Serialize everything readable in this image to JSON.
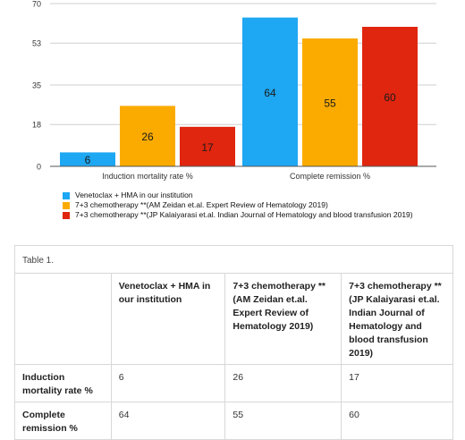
{
  "chart_data": {
    "type": "bar",
    "categories": [
      "Induction mortality rate  %",
      "Complete remission %"
    ],
    "series": [
      {
        "name": "Venetoclax + HMA in our institution",
        "values": [
          6,
          64
        ],
        "color": "#1ea7f2"
      },
      {
        "name": "7+3 chemotherapy **(AM Zeidan et.al. Expert Review of Hematology 2019)",
        "values": [
          26,
          55
        ],
        "color": "#fbab00"
      },
      {
        "name": "7+3 chemotherapy **(JP Kalaiyarasi et.al. Indian Journal of Hematology and blood transfusion 2019)",
        "values": [
          17,
          60
        ],
        "color": "#e0260f"
      }
    ],
    "yticks": [
      0,
      18,
      35,
      53,
      70
    ],
    "ylim": [
      0,
      70
    ],
    "grid": true,
    "legend": "bottom-left",
    "title": "",
    "xlabel": "",
    "ylabel": ""
  },
  "table": {
    "caption": "Table 1.",
    "headers": [
      "",
      "Venetoclax + HMA in our institution",
      "7+3 chemotherapy ** (AM Zeidan et.al. Expert Review of Hematology 2019)",
      "7+3 chemotherapy ** (JP Kalaiyarasi et.al. Indian Journal of Hematology and blood transfusion 2019)"
    ],
    "rows": [
      {
        "label": "Induction mortality rate  %",
        "values": [
          "6",
          "26",
          "17"
        ]
      },
      {
        "label": "Complete remission %",
        "values": [
          "64",
          "55",
          "60"
        ]
      }
    ]
  }
}
